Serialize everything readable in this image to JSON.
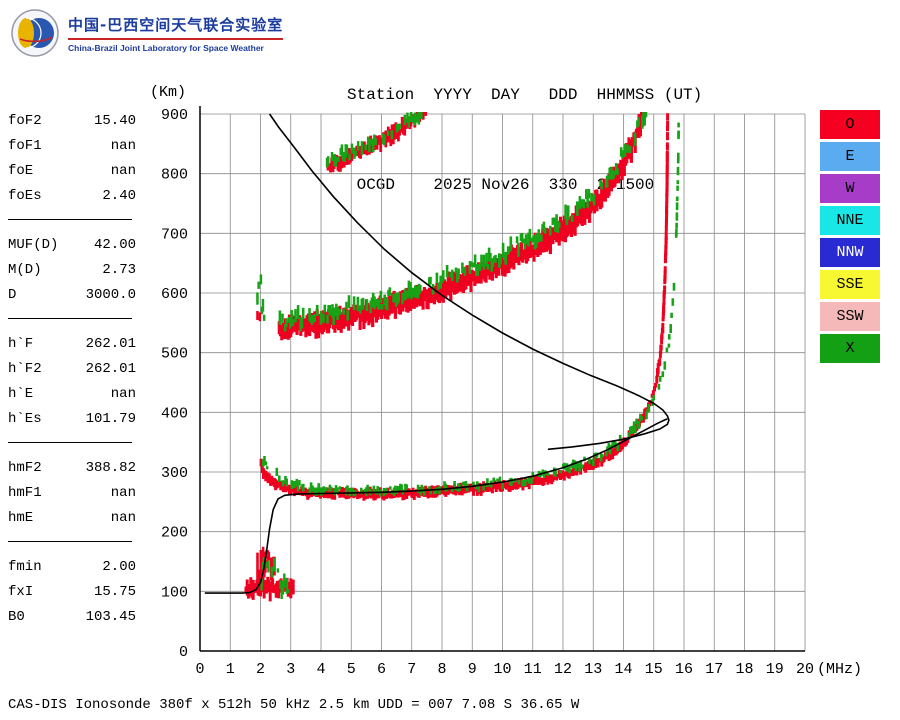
{
  "header": {
    "logo_cn": "中国-巴西空间天气联合实验室",
    "logo_en": "China-Brazil Joint Laboratory for Space Weather",
    "title_line1": "Station  YYYY  DAY   DDD  HHMMSS (UT)",
    "title_line2": " OCGD    2025 Nov26  330  201500"
  },
  "params": {
    "groups": [
      {
        "rows": [
          {
            "label": "foF2",
            "value": "15.40"
          },
          {
            "label": "foF1",
            "value": "nan"
          },
          {
            "label": "foE",
            "value": "nan"
          },
          {
            "label": "foEs",
            "value": "2.40"
          }
        ]
      },
      {
        "rows": [
          {
            "label": "MUF(D)",
            "value": "42.00"
          },
          {
            "label": "M(D)",
            "value": "2.73"
          },
          {
            "label": "D",
            "value": "3000.0"
          }
        ]
      },
      {
        "rows": [
          {
            "label": "h`F",
            "value": "262.01"
          },
          {
            "label": "h`F2",
            "value": "262.01"
          },
          {
            "label": "h`E",
            "value": "nan"
          },
          {
            "label": "h`Es",
            "value": "101.79"
          }
        ]
      },
      {
        "rows": [
          {
            "label": "hmF2",
            "value": "388.82"
          },
          {
            "label": "hmF1",
            "value": "nan"
          },
          {
            "label": "hmE",
            "value": "nan"
          }
        ]
      },
      {
        "rows": [
          {
            "label": "fmin",
            "value": "2.00"
          },
          {
            "label": "fxI",
            "value": "15.75"
          },
          {
            "label": "B0",
            "value": "103.45"
          }
        ]
      }
    ]
  },
  "legend": [
    {
      "label": "O",
      "bg": "#f50021",
      "fg": "#000000"
    },
    {
      "label": "E",
      "bg": "#5aabf0",
      "fg": "#000000"
    },
    {
      "label": "W",
      "bg": "#a63cc8",
      "fg": "#000000"
    },
    {
      "label": "NNE",
      "bg": "#19e6e6",
      "fg": "#000000"
    },
    {
      "label": "NNW",
      "bg": "#2a2ad2",
      "fg": "#ffffff"
    },
    {
      "label": "SSE",
      "bg": "#f8f832",
      "fg": "#000000"
    },
    {
      "label": "SSW",
      "bg": "#f5b9b9",
      "fg": "#000000"
    },
    {
      "label": "X",
      "bg": "#14a014",
      "fg": "#000000"
    }
  ],
  "footer": {
    "text": "CAS-DIS Ionosonde 380f x 512h 50 kHz 2.5 km UDD = 007 7.08 S 36.65 W"
  },
  "chart_data": {
    "type": "scatter",
    "title": "",
    "xlabel": "(MHz)",
    "ylabel": "(Km)",
    "xlim": [
      0,
      20
    ],
    "ylim": [
      0,
      900
    ],
    "x_ticks": [
      0,
      1,
      2,
      3,
      4,
      5,
      6,
      7,
      8,
      9,
      10,
      11,
      12,
      13,
      14,
      15,
      16,
      17,
      18,
      19,
      20
    ],
    "y_ticks": [
      0,
      100,
      200,
      300,
      400,
      500,
      600,
      700,
      800,
      900
    ],
    "grid": true,
    "legend_position": "right",
    "colors": {
      "o_mode": "#f00020",
      "x_mode": "#16a316",
      "profile": "#000000"
    },
    "series": [
      {
        "name": "O-mode-first-hop",
        "type": "band",
        "color": "#f00020",
        "w": 3,
        "base": 4,
        "jitter": 7,
        "scatter": 5,
        "density": 1,
        "points": [
          [
            2.02,
            312
          ],
          [
            2.1,
            300
          ],
          [
            2.25,
            290
          ],
          [
            2.5,
            281
          ],
          [
            2.8,
            274
          ],
          [
            3.2,
            269
          ],
          [
            3.6,
            266
          ],
          [
            4.2,
            264
          ],
          [
            5,
            263
          ],
          [
            6,
            263
          ],
          [
            7,
            264
          ],
          [
            8,
            267
          ],
          [
            9,
            271
          ],
          [
            10,
            276
          ],
          [
            10.8,
            282
          ],
          [
            11.5,
            289
          ],
          [
            12,
            295
          ],
          [
            12.5,
            303
          ],
          [
            13,
            313
          ],
          [
            13.4,
            324
          ],
          [
            13.8,
            339
          ],
          [
            14.1,
            354
          ],
          [
            14.4,
            372
          ],
          [
            14.7,
            396
          ],
          [
            14.95,
            424
          ],
          [
            15.1,
            455
          ],
          [
            15.22,
            495
          ],
          [
            15.3,
            545
          ],
          [
            15.36,
            610
          ],
          [
            15.41,
            690
          ],
          [
            15.44,
            780
          ],
          [
            15.46,
            900
          ]
        ]
      },
      {
        "name": "X-mode-first-hop",
        "type": "band",
        "color": "#16a316",
        "w": 2.6,
        "base": 3,
        "jitter": 6,
        "scatter": 8,
        "density": 0.5,
        "points": [
          [
            2.05,
            322
          ],
          [
            2.3,
            304
          ],
          [
            2.7,
            288
          ],
          [
            3.2,
            279
          ],
          [
            3.8,
            273
          ],
          [
            4.5,
            270
          ],
          [
            5.5,
            268
          ],
          [
            6.5,
            269
          ],
          [
            7.5,
            271
          ],
          [
            8.5,
            274
          ],
          [
            9.5,
            279
          ],
          [
            10.5,
            286
          ],
          [
            11.5,
            296
          ],
          [
            12.3,
            308
          ],
          [
            13,
            322
          ],
          [
            13.6,
            340
          ],
          [
            14.1,
            360
          ],
          [
            14.6,
            388
          ],
          [
            15,
            420
          ],
          [
            15.3,
            465
          ],
          [
            15.5,
            515
          ],
          [
            15.62,
            575
          ],
          [
            15.7,
            640
          ],
          [
            15.76,
            720
          ],
          [
            15.8,
            800
          ],
          [
            15.83,
            900
          ]
        ]
      },
      {
        "name": "Es-layer-O",
        "type": "band",
        "color": "#f00020",
        "w": 3,
        "base": 5,
        "jitter": 16,
        "scatter": 8,
        "density": 1,
        "points": [
          [
            1.52,
            101
          ],
          [
            1.8,
            103
          ],
          [
            2.2,
            105
          ],
          [
            2.6,
            106
          ],
          [
            3.0,
            106
          ],
          [
            3.12,
            105
          ]
        ]
      },
      {
        "name": "Es-spread-O",
        "type": "band",
        "color": "#f00020",
        "w": 2.6,
        "base": 6,
        "jitter": 26,
        "scatter": 22,
        "density": 0.75,
        "points": [
          [
            1.9,
            128
          ],
          [
            2.05,
            140
          ],
          [
            2.2,
            146
          ],
          [
            2.35,
            136
          ],
          [
            2.5,
            122
          ]
        ]
      },
      {
        "name": "Es-fringe-X",
        "type": "band",
        "color": "#16a316",
        "w": 2.4,
        "base": 4,
        "jitter": 12,
        "scatter": 18,
        "density": 0.55,
        "points": [
          [
            2.0,
            116
          ],
          [
            2.15,
            145
          ],
          [
            2.3,
            158
          ],
          [
            2.45,
            132
          ],
          [
            2.7,
            112
          ],
          [
            3.0,
            110
          ]
        ]
      },
      {
        "name": "second-hop-O",
        "type": "band",
        "color": "#f00020",
        "w": 3.2,
        "base": 9,
        "jitter": 15,
        "scatter": 9,
        "density": 1,
        "points": [
          [
            2.62,
            538
          ],
          [
            3,
            542
          ],
          [
            3.5,
            546
          ],
          [
            4,
            550
          ],
          [
            4.5,
            555
          ],
          [
            5,
            560
          ],
          [
            5.5,
            566
          ],
          [
            6,
            572
          ],
          [
            6.5,
            579
          ],
          [
            7,
            587
          ],
          [
            7.5,
            596
          ],
          [
            8,
            605
          ],
          [
            8.5,
            615
          ],
          [
            9,
            625
          ],
          [
            9.5,
            636
          ],
          [
            10,
            648
          ],
          [
            10.5,
            660
          ],
          [
            11,
            673
          ],
          [
            11.5,
            688
          ],
          [
            12,
            704
          ],
          [
            12.4,
            719
          ],
          [
            12.8,
            737
          ],
          [
            13.2,
            758
          ],
          [
            13.6,
            784
          ],
          [
            13.95,
            812
          ],
          [
            14.3,
            848
          ],
          [
            14.6,
            890
          ],
          [
            14.75,
            915
          ]
        ]
      },
      {
        "name": "second-hop-X-fringe",
        "type": "band",
        "color": "#16a316",
        "w": 2.6,
        "base": 5,
        "jitter": 10,
        "scatter": 14,
        "density": 0.6,
        "points": [
          [
            2.6,
            548
          ],
          [
            3.2,
            556
          ],
          [
            4,
            564
          ],
          [
            4.8,
            572
          ],
          [
            5.6,
            582
          ],
          [
            6.4,
            594
          ],
          [
            7.2,
            608
          ],
          [
            8,
            622
          ],
          [
            8.8,
            638
          ],
          [
            9.6,
            656
          ],
          [
            10.4,
            676
          ],
          [
            11.2,
            698
          ],
          [
            12,
            722
          ],
          [
            12.6,
            746
          ],
          [
            13.2,
            776
          ],
          [
            13.8,
            815
          ],
          [
            14.3,
            858
          ],
          [
            14.7,
            900
          ],
          [
            15.0,
            915
          ],
          [
            15.3,
            945
          ]
        ]
      },
      {
        "name": "third-hop-O",
        "type": "band",
        "color": "#f00020",
        "w": 2.8,
        "base": 6,
        "jitter": 11,
        "scatter": 7,
        "density": 0.9,
        "points": [
          [
            4.15,
            812
          ],
          [
            4.6,
            820
          ],
          [
            5.1,
            831
          ],
          [
            5.6,
            844
          ],
          [
            6.1,
            858
          ],
          [
            6.6,
            874
          ],
          [
            7.1,
            892
          ],
          [
            7.5,
            912
          ]
        ]
      },
      {
        "name": "third-hop-X-fringe",
        "type": "band",
        "color": "#16a316",
        "w": 2.5,
        "base": 5,
        "jitter": 9,
        "scatter": 10,
        "density": 0.6,
        "points": [
          [
            4.2,
            822
          ],
          [
            4.9,
            834
          ],
          [
            5.6,
            850
          ],
          [
            6.3,
            868
          ],
          [
            6.9,
            888
          ],
          [
            7.4,
            906
          ]
        ]
      },
      {
        "name": "scatter-echo-X-left",
        "type": "band",
        "color": "#16a316",
        "w": 2.5,
        "base": 4,
        "jitter": 9,
        "scatter": 30,
        "density": 0.6,
        "points": [
          [
            1.86,
            596
          ],
          [
            1.98,
            604
          ],
          [
            2.08,
            588
          ],
          [
            2.16,
            578
          ]
        ]
      },
      {
        "name": "scatter-echo-O-left",
        "type": "band",
        "color": "#f00020",
        "w": 2.5,
        "base": 4,
        "jitter": 8,
        "scatter": 16,
        "density": 0.5,
        "points": [
          [
            1.9,
            565
          ],
          [
            2.02,
            575
          ]
        ]
      },
      {
        "name": "true-height-profile",
        "type": "line",
        "color": "#000000",
        "width": 1.6,
        "points": [
          [
            0.16,
            97
          ],
          [
            1.4,
            97
          ],
          [
            1.65,
            98
          ],
          [
            1.85,
            103
          ],
          [
            2.0,
            115
          ],
          [
            2.1,
            135
          ],
          [
            2.2,
            168
          ],
          [
            2.3,
            205
          ],
          [
            2.42,
            237
          ],
          [
            2.58,
            255
          ],
          [
            2.8,
            261
          ],
          [
            3.2,
            263
          ],
          [
            4,
            264
          ],
          [
            5,
            265
          ],
          [
            6,
            266
          ],
          [
            7,
            268
          ],
          [
            8,
            271
          ],
          [
            9,
            276
          ],
          [
            10,
            283
          ],
          [
            11,
            293
          ],
          [
            12,
            307
          ],
          [
            12.8,
            322
          ],
          [
            13.5,
            338
          ],
          [
            14.1,
            354
          ],
          [
            14.7,
            370
          ],
          [
            15.1,
            381
          ],
          [
            15.35,
            387
          ],
          [
            15.45,
            389
          ]
        ]
      },
      {
        "name": "muf-transmission-curve",
        "type": "line",
        "color": "#000000",
        "width": 1.6,
        "points": [
          [
            2.3,
            900
          ],
          [
            2.6,
            878
          ],
          [
            3.1,
            845
          ],
          [
            3.7,
            805
          ],
          [
            4.4,
            762
          ],
          [
            5.2,
            718
          ],
          [
            6.1,
            673
          ],
          [
            7.0,
            634
          ],
          [
            8.0,
            596
          ],
          [
            9.0,
            563
          ],
          [
            10.0,
            533
          ],
          [
            11.0,
            506
          ],
          [
            12.0,
            482
          ],
          [
            12.9,
            462
          ],
          [
            13.8,
            444
          ],
          [
            14.5,
            428
          ],
          [
            15.0,
            415
          ],
          [
            15.3,
            404
          ],
          [
            15.45,
            394
          ],
          [
            15.5,
            387
          ],
          [
            15.45,
            380
          ],
          [
            15.2,
            372
          ],
          [
            14.7,
            364
          ],
          [
            14.0,
            355
          ],
          [
            13.2,
            348
          ],
          [
            12.3,
            342
          ],
          [
            11.5,
            338
          ]
        ]
      }
    ]
  }
}
